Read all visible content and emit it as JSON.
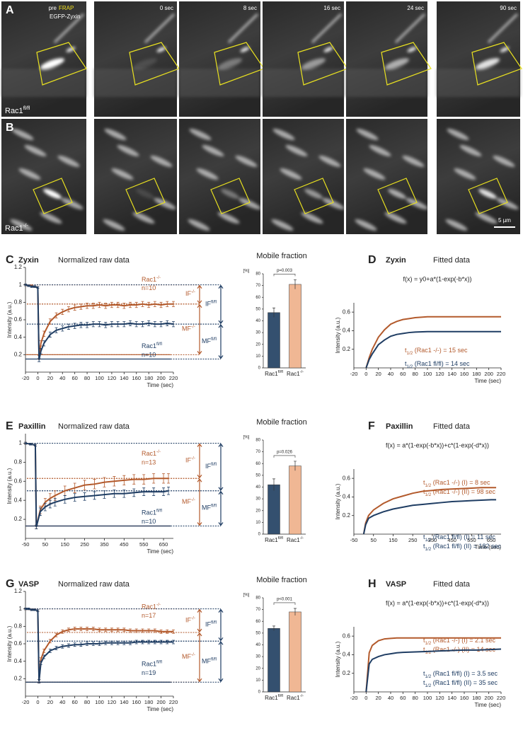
{
  "figure": {
    "images": {
      "panels": [
        "A",
        "B"
      ],
      "pre": "pre",
      "frap": "FRAP",
      "protein": "EGFP-Zyxin",
      "times": [
        "0 sec",
        "8 sec",
        "16 sec",
        "24 sec",
        "90 sec"
      ],
      "row_labels": [
        "Rac1fl/fl",
        "Rac1-/-"
      ],
      "scale_bar": "5 µm"
    }
  },
  "chart_data": [
    {
      "type": "line",
      "panel": "C",
      "title": "Zyxin",
      "subtitle": "Normalized raw data",
      "xlabel": "Time (sec)",
      "ylabel": "Intensity (a.u.)",
      "x": [
        -20,
        -15,
        -10,
        -5,
        0,
        2,
        5,
        10,
        20,
        30,
        40,
        50,
        60,
        70,
        80,
        90,
        100,
        110,
        120,
        130,
        140,
        150,
        160,
        170,
        180,
        190,
        200,
        210,
        220
      ],
      "series": [
        {
          "name": "Rac1-/-",
          "n": "n=10",
          "color": "#b35a2c",
          "values": [
            1,
            0.99,
            0.99,
            0.98,
            0.97,
            0.17,
            0.33,
            0.44,
            0.58,
            0.65,
            0.69,
            0.72,
            0.74,
            0.75,
            0.76,
            0.76,
            0.77,
            0.76,
            0.77,
            0.77,
            0.76,
            0.77,
            0.77,
            0.78,
            0.77,
            0.78,
            0.77,
            0.78,
            0.78
          ],
          "errors": [
            0.01,
            0.01,
            0.01,
            0.01,
            0.01,
            0.02,
            0.03,
            0.03,
            0.03,
            0.03,
            0.03,
            0.03,
            0.03,
            0.03,
            0.03,
            0.03,
            0.03,
            0.03,
            0.03,
            0.03,
            0.03,
            0.03,
            0.03,
            0.03,
            0.03,
            0.03,
            0.03,
            0.03,
            0.03
          ]
        },
        {
          "name": "Rac1fl/fl",
          "n": "n=10",
          "color": "#1f3d63",
          "values": [
            1,
            0.99,
            0.98,
            0.98,
            0.97,
            0.14,
            0.24,
            0.33,
            0.43,
            0.48,
            0.5,
            0.52,
            0.53,
            0.54,
            0.54,
            0.55,
            0.55,
            0.54,
            0.55,
            0.55,
            0.55,
            0.56,
            0.55,
            0.55,
            0.56,
            0.55,
            0.55,
            0.56,
            0.55
          ],
          "errors": [
            0.01,
            0.01,
            0.01,
            0.01,
            0.01,
            0.02,
            0.03,
            0.03,
            0.03,
            0.03,
            0.03,
            0.03,
            0.03,
            0.03,
            0.03,
            0.03,
            0.03,
            0.03,
            0.03,
            0.03,
            0.03,
            0.03,
            0.03,
            0.03,
            0.03,
            0.03,
            0.03,
            0.03,
            0.03
          ]
        }
      ],
      "xlim": [
        -20,
        220
      ],
      "ylim": [
        0,
        1.2
      ],
      "xticks": [
        -20,
        0,
        20,
        40,
        60,
        80,
        100,
        120,
        140,
        160,
        180,
        200,
        220
      ],
      "yticks": [
        0.2,
        0.4,
        0.6,
        0.8,
        1,
        1.2
      ],
      "fractions": [
        {
          "label": "IF-/-",
          "color": "#b35a2c",
          "range": [
            1,
            0.78
          ]
        },
        {
          "label": "MF-/-",
          "color": "#b35a2c",
          "range": [
            0.78,
            0.2
          ]
        },
        {
          "label": "IFfl/fl",
          "color": "#1f3d63",
          "range": [
            1,
            0.55
          ]
        },
        {
          "label": "MFfl/fl",
          "color": "#1f3d63",
          "range": [
            0.55,
            0.15
          ]
        }
      ]
    },
    {
      "type": "bar",
      "title": "Mobile fraction",
      "ylabel": "[%]",
      "categories": [
        "Rac1fl/fl",
        "Rac1-/-"
      ],
      "values": [
        47,
        71
      ],
      "errors": [
        4,
        4
      ],
      "colors": [
        "#34506f",
        "#f0b794"
      ],
      "ylim": [
        0,
        80
      ],
      "yticks": [
        0,
        10,
        20,
        30,
        40,
        50,
        60,
        70,
        80
      ],
      "p_value": "p=0.003"
    },
    {
      "type": "line",
      "panel": "D",
      "title": "Zyxin",
      "subtitle": "Fitted data",
      "formula": "f(x) = y0+a*(1-exp(-b*x))",
      "xlabel": "Time (sec)",
      "ylabel": "Intensity (a.u.)",
      "x": [
        0,
        5,
        10,
        20,
        30,
        40,
        50,
        60,
        70,
        80,
        100,
        120,
        140,
        160,
        180,
        200,
        220
      ],
      "series": [
        {
          "color": "#b35a2c",
          "values": [
            0,
            0.11,
            0.2,
            0.33,
            0.41,
            0.47,
            0.5,
            0.52,
            0.53,
            0.54,
            0.55,
            0.55,
            0.55,
            0.55,
            0.55,
            0.55,
            0.55
          ],
          "labels": [
            "t1/2 (Rac1 -/-) = 15 sec"
          ]
        },
        {
          "color": "#1f3d63",
          "values": [
            0,
            0.09,
            0.15,
            0.25,
            0.3,
            0.34,
            0.36,
            0.37,
            0.38,
            0.385,
            0.39,
            0.39,
            0.39,
            0.39,
            0.39,
            0.39,
            0.39
          ],
          "labels": [
            "t1/2 (Rac1 fl/fl) = 14 sec"
          ]
        }
      ],
      "xlim": [
        -20,
        220
      ],
      "ylim": [
        0,
        0.7
      ],
      "xticks": [
        -20,
        0,
        20,
        40,
        60,
        80,
        100,
        120,
        140,
        160,
        180,
        200,
        220
      ],
      "yticks": [
        0.2,
        0.4,
        0.6
      ]
    },
    {
      "type": "line",
      "panel": "E",
      "title": "Paxillin",
      "subtitle": "Normalized raw data",
      "xlabel": "Time (sec)",
      "ylabel": "Intensity (a.u.)",
      "x": [
        -50,
        -25,
        0,
        5,
        25,
        50,
        75,
        100,
        150,
        200,
        250,
        300,
        350,
        400,
        450,
        500,
        550,
        600,
        650,
        675
      ],
      "series": [
        {
          "name": "Rac1-/-",
          "n": "n=13",
          "color": "#b35a2c",
          "values": [
            1,
            0.99,
            0.98,
            0.12,
            0.3,
            0.38,
            0.42,
            0.45,
            0.5,
            0.53,
            0.56,
            0.57,
            0.59,
            0.6,
            0.61,
            0.62,
            0.62,
            0.63,
            0.63,
            0.63
          ],
          "errors": [
            0.01,
            0.01,
            0.01,
            0.02,
            0.04,
            0.04,
            0.05,
            0.05,
            0.05,
            0.05,
            0.05,
            0.05,
            0.05,
            0.05,
            0.05,
            0.05,
            0.05,
            0.05,
            0.05,
            0.05
          ]
        },
        {
          "name": "Rac1fl/fl",
          "n": "n=10",
          "color": "#1f3d63",
          "values": [
            1,
            0.99,
            0.98,
            0.12,
            0.28,
            0.33,
            0.36,
            0.38,
            0.41,
            0.43,
            0.44,
            0.45,
            0.46,
            0.47,
            0.47,
            0.48,
            0.49,
            0.49,
            0.49,
            0.5
          ],
          "errors": [
            0.01,
            0.01,
            0.01,
            0.02,
            0.04,
            0.04,
            0.04,
            0.04,
            0.04,
            0.04,
            0.04,
            0.04,
            0.04,
            0.04,
            0.04,
            0.04,
            0.04,
            0.04,
            0.04,
            0.04
          ]
        }
      ],
      "xlim": [
        -50,
        700
      ],
      "ylim": [
        0,
        1.1
      ],
      "xticks": [
        -50,
        50,
        150,
        250,
        350,
        450,
        550,
        650
      ],
      "yticks": [
        0.2,
        0.4,
        0.6,
        0.8,
        1
      ],
      "fractions": [
        {
          "label": "IF-/-",
          "color": "#b35a2c",
          "range": [
            1,
            0.63
          ]
        },
        {
          "label": "MF-/-",
          "color": "#b35a2c",
          "range": [
            0.63,
            0.13
          ]
        },
        {
          "label": "IFfl/fl",
          "color": "#1f3d63",
          "range": [
            1,
            0.5
          ]
        },
        {
          "label": "MFfl/fl",
          "color": "#1f3d63",
          "range": [
            0.5,
            0.13
          ]
        }
      ]
    },
    {
      "type": "bar",
      "title": "Mobile fraction",
      "ylabel": "[%]",
      "categories": [
        "Rac1fl/fl",
        "Rac1-/-"
      ],
      "values": [
        42,
        58
      ],
      "errors": [
        5,
        4
      ],
      "colors": [
        "#34506f",
        "#f0b794"
      ],
      "ylim": [
        0,
        80
      ],
      "yticks": [
        0,
        10,
        20,
        30,
        40,
        50,
        60,
        70,
        80
      ],
      "p_value": "p=0.026"
    },
    {
      "type": "line",
      "panel": "F",
      "title": "Paxillin",
      "subtitle": "Fitted data",
      "formula": "f(x) = a*(1-exp(-b*x))+c*(1-exp(-d*x))",
      "xlabel": "Time (sec)",
      "ylabel": "Intensity (a.u.)",
      "x": [
        0,
        10,
        25,
        50,
        100,
        150,
        200,
        250,
        300,
        350,
        400,
        450,
        500,
        550,
        600,
        650,
        675
      ],
      "series": [
        {
          "color": "#b35a2c",
          "values": [
            0,
            0.12,
            0.2,
            0.26,
            0.33,
            0.38,
            0.41,
            0.44,
            0.46,
            0.47,
            0.48,
            0.485,
            0.49,
            0.495,
            0.5,
            0.5,
            0.5
          ],
          "labels": [
            "t1/2 (Rac1 -/-) (I) = 8 sec",
            "t1/2 (Rac1 -/-) (II) = 98 sec"
          ]
        },
        {
          "color": "#1f3d63",
          "values": [
            0,
            0.1,
            0.17,
            0.2,
            0.24,
            0.27,
            0.29,
            0.31,
            0.32,
            0.33,
            0.34,
            0.35,
            0.355,
            0.36,
            0.365,
            0.37,
            0.37
          ],
          "labels": [
            "t1/2 (Rac1 fl/fl) (I) = 11 sec",
            "t1/2 (Rac1 fl/fl) (II) = 182 sec"
          ]
        }
      ],
      "xlim": [
        -50,
        700
      ],
      "ylim": [
        0,
        0.7
      ],
      "xticks": [
        -50,
        50,
        150,
        250,
        350,
        450,
        550,
        650
      ],
      "yticks": [
        0.2,
        0.4,
        0.6
      ]
    },
    {
      "type": "line",
      "panel": "G",
      "title": "VASP",
      "subtitle": "Normalized raw data",
      "xlabel": "Time (sec)",
      "ylabel": "Intensity (a.u.)",
      "x": [
        -20,
        -15,
        -10,
        -5,
        0,
        2,
        5,
        10,
        20,
        30,
        40,
        50,
        60,
        70,
        80,
        90,
        100,
        110,
        120,
        130,
        140,
        150,
        160,
        170,
        180,
        190,
        200,
        210,
        220
      ],
      "series": [
        {
          "name": "Rac1-/-",
          "n": "n=17",
          "color": "#b35a2c",
          "values": [
            1,
            1,
            0.99,
            0.99,
            0.98,
            0.17,
            0.42,
            0.52,
            0.63,
            0.7,
            0.74,
            0.76,
            0.77,
            0.77,
            0.77,
            0.77,
            0.76,
            0.76,
            0.76,
            0.76,
            0.76,
            0.75,
            0.75,
            0.75,
            0.75,
            0.75,
            0.74,
            0.74,
            0.74
          ],
          "errors": [
            0.01,
            0.01,
            0.01,
            0.01,
            0.01,
            0.02,
            0.02,
            0.02,
            0.02,
            0.02,
            0.02,
            0.02,
            0.02,
            0.02,
            0.02,
            0.02,
            0.02,
            0.02,
            0.02,
            0.02,
            0.02,
            0.02,
            0.02,
            0.02,
            0.02,
            0.02,
            0.02,
            0.02,
            0.02
          ]
        },
        {
          "name": "Rac1fl/fl",
          "n": "n=19",
          "color": "#1f3d63",
          "values": [
            1,
            1,
            0.99,
            0.99,
            0.98,
            0.17,
            0.38,
            0.45,
            0.52,
            0.55,
            0.57,
            0.58,
            0.59,
            0.59,
            0.6,
            0.6,
            0.6,
            0.61,
            0.61,
            0.61,
            0.61,
            0.61,
            0.62,
            0.62,
            0.62,
            0.62,
            0.62,
            0.62,
            0.62
          ],
          "errors": [
            0.01,
            0.01,
            0.01,
            0.01,
            0.01,
            0.02,
            0.02,
            0.02,
            0.02,
            0.02,
            0.02,
            0.02,
            0.02,
            0.02,
            0.02,
            0.02,
            0.02,
            0.02,
            0.02,
            0.02,
            0.02,
            0.02,
            0.02,
            0.02,
            0.02,
            0.02,
            0.02,
            0.02,
            0.02
          ]
        }
      ],
      "xlim": [
        -20,
        220
      ],
      "ylim": [
        0,
        1.2
      ],
      "xticks": [
        -20,
        0,
        20,
        40,
        60,
        80,
        100,
        120,
        140,
        160,
        180,
        200,
        220
      ],
      "yticks": [
        0.2,
        0.4,
        0.6,
        0.8,
        1,
        1.2
      ],
      "fractions": [
        {
          "label": "IF-/-",
          "color": "#b35a2c",
          "range": [
            1,
            0.73
          ]
        },
        {
          "label": "MF-/-",
          "color": "#b35a2c",
          "range": [
            0.73,
            0.16
          ]
        },
        {
          "label": "IFfl/fl",
          "color": "#1f3d63",
          "range": [
            1,
            0.63
          ]
        },
        {
          "label": "MFfl/fl",
          "color": "#1f3d63",
          "range": [
            0.63,
            0.16
          ]
        }
      ]
    },
    {
      "type": "bar",
      "title": "Mobile fraction",
      "ylabel": "[%]",
      "categories": [
        "Rac1fl/fl",
        "Rac1-/-"
      ],
      "values": [
        54,
        68
      ],
      "errors": [
        2,
        3
      ],
      "colors": [
        "#34506f",
        "#f0b794"
      ],
      "ylim": [
        0,
        80
      ],
      "yticks": [
        0,
        10,
        20,
        30,
        40,
        50,
        60,
        70,
        80
      ],
      "p_value": "p<0.001"
    },
    {
      "type": "line",
      "panel": "H",
      "title": "VASP",
      "subtitle": "Fitted data",
      "formula": "f(x) = a*(1-exp(-b*x))+c*(1-exp(-d*x))",
      "xlabel": "Time (sec)",
      "ylabel": "Intensity (a.u.)",
      "x": [
        0,
        5,
        10,
        20,
        30,
        40,
        50,
        60,
        80,
        100,
        120,
        140,
        160,
        180,
        200,
        220
      ],
      "series": [
        {
          "color": "#b35a2c",
          "values": [
            0,
            0.42,
            0.5,
            0.55,
            0.57,
            0.575,
            0.58,
            0.58,
            0.58,
            0.58,
            0.58,
            0.58,
            0.58,
            0.58,
            0.58,
            0.58
          ],
          "labels": [
            "t1/2 (Rac1 -/-) (I) = 2.1 sec",
            "t1/2 (Rac1 -/-) (II) = 14 sec"
          ]
        },
        {
          "color": "#1f3d63",
          "values": [
            0,
            0.3,
            0.35,
            0.38,
            0.4,
            0.41,
            0.42,
            0.425,
            0.43,
            0.435,
            0.44,
            0.445,
            0.45,
            0.45,
            0.455,
            0.46
          ],
          "labels": [
            "t1/2 (Rac1 fl/fl) (I) = 3.5 sec",
            "t1/2 (Rac1 fl/fl) (II) = 35 sec"
          ]
        }
      ],
      "xlim": [
        -20,
        220
      ],
      "ylim": [
        0,
        0.7
      ],
      "xticks": [
        -20,
        0,
        20,
        40,
        60,
        80,
        100,
        120,
        140,
        160,
        180,
        200,
        220
      ],
      "yticks": [
        0.2,
        0.4,
        0.6
      ]
    }
  ]
}
